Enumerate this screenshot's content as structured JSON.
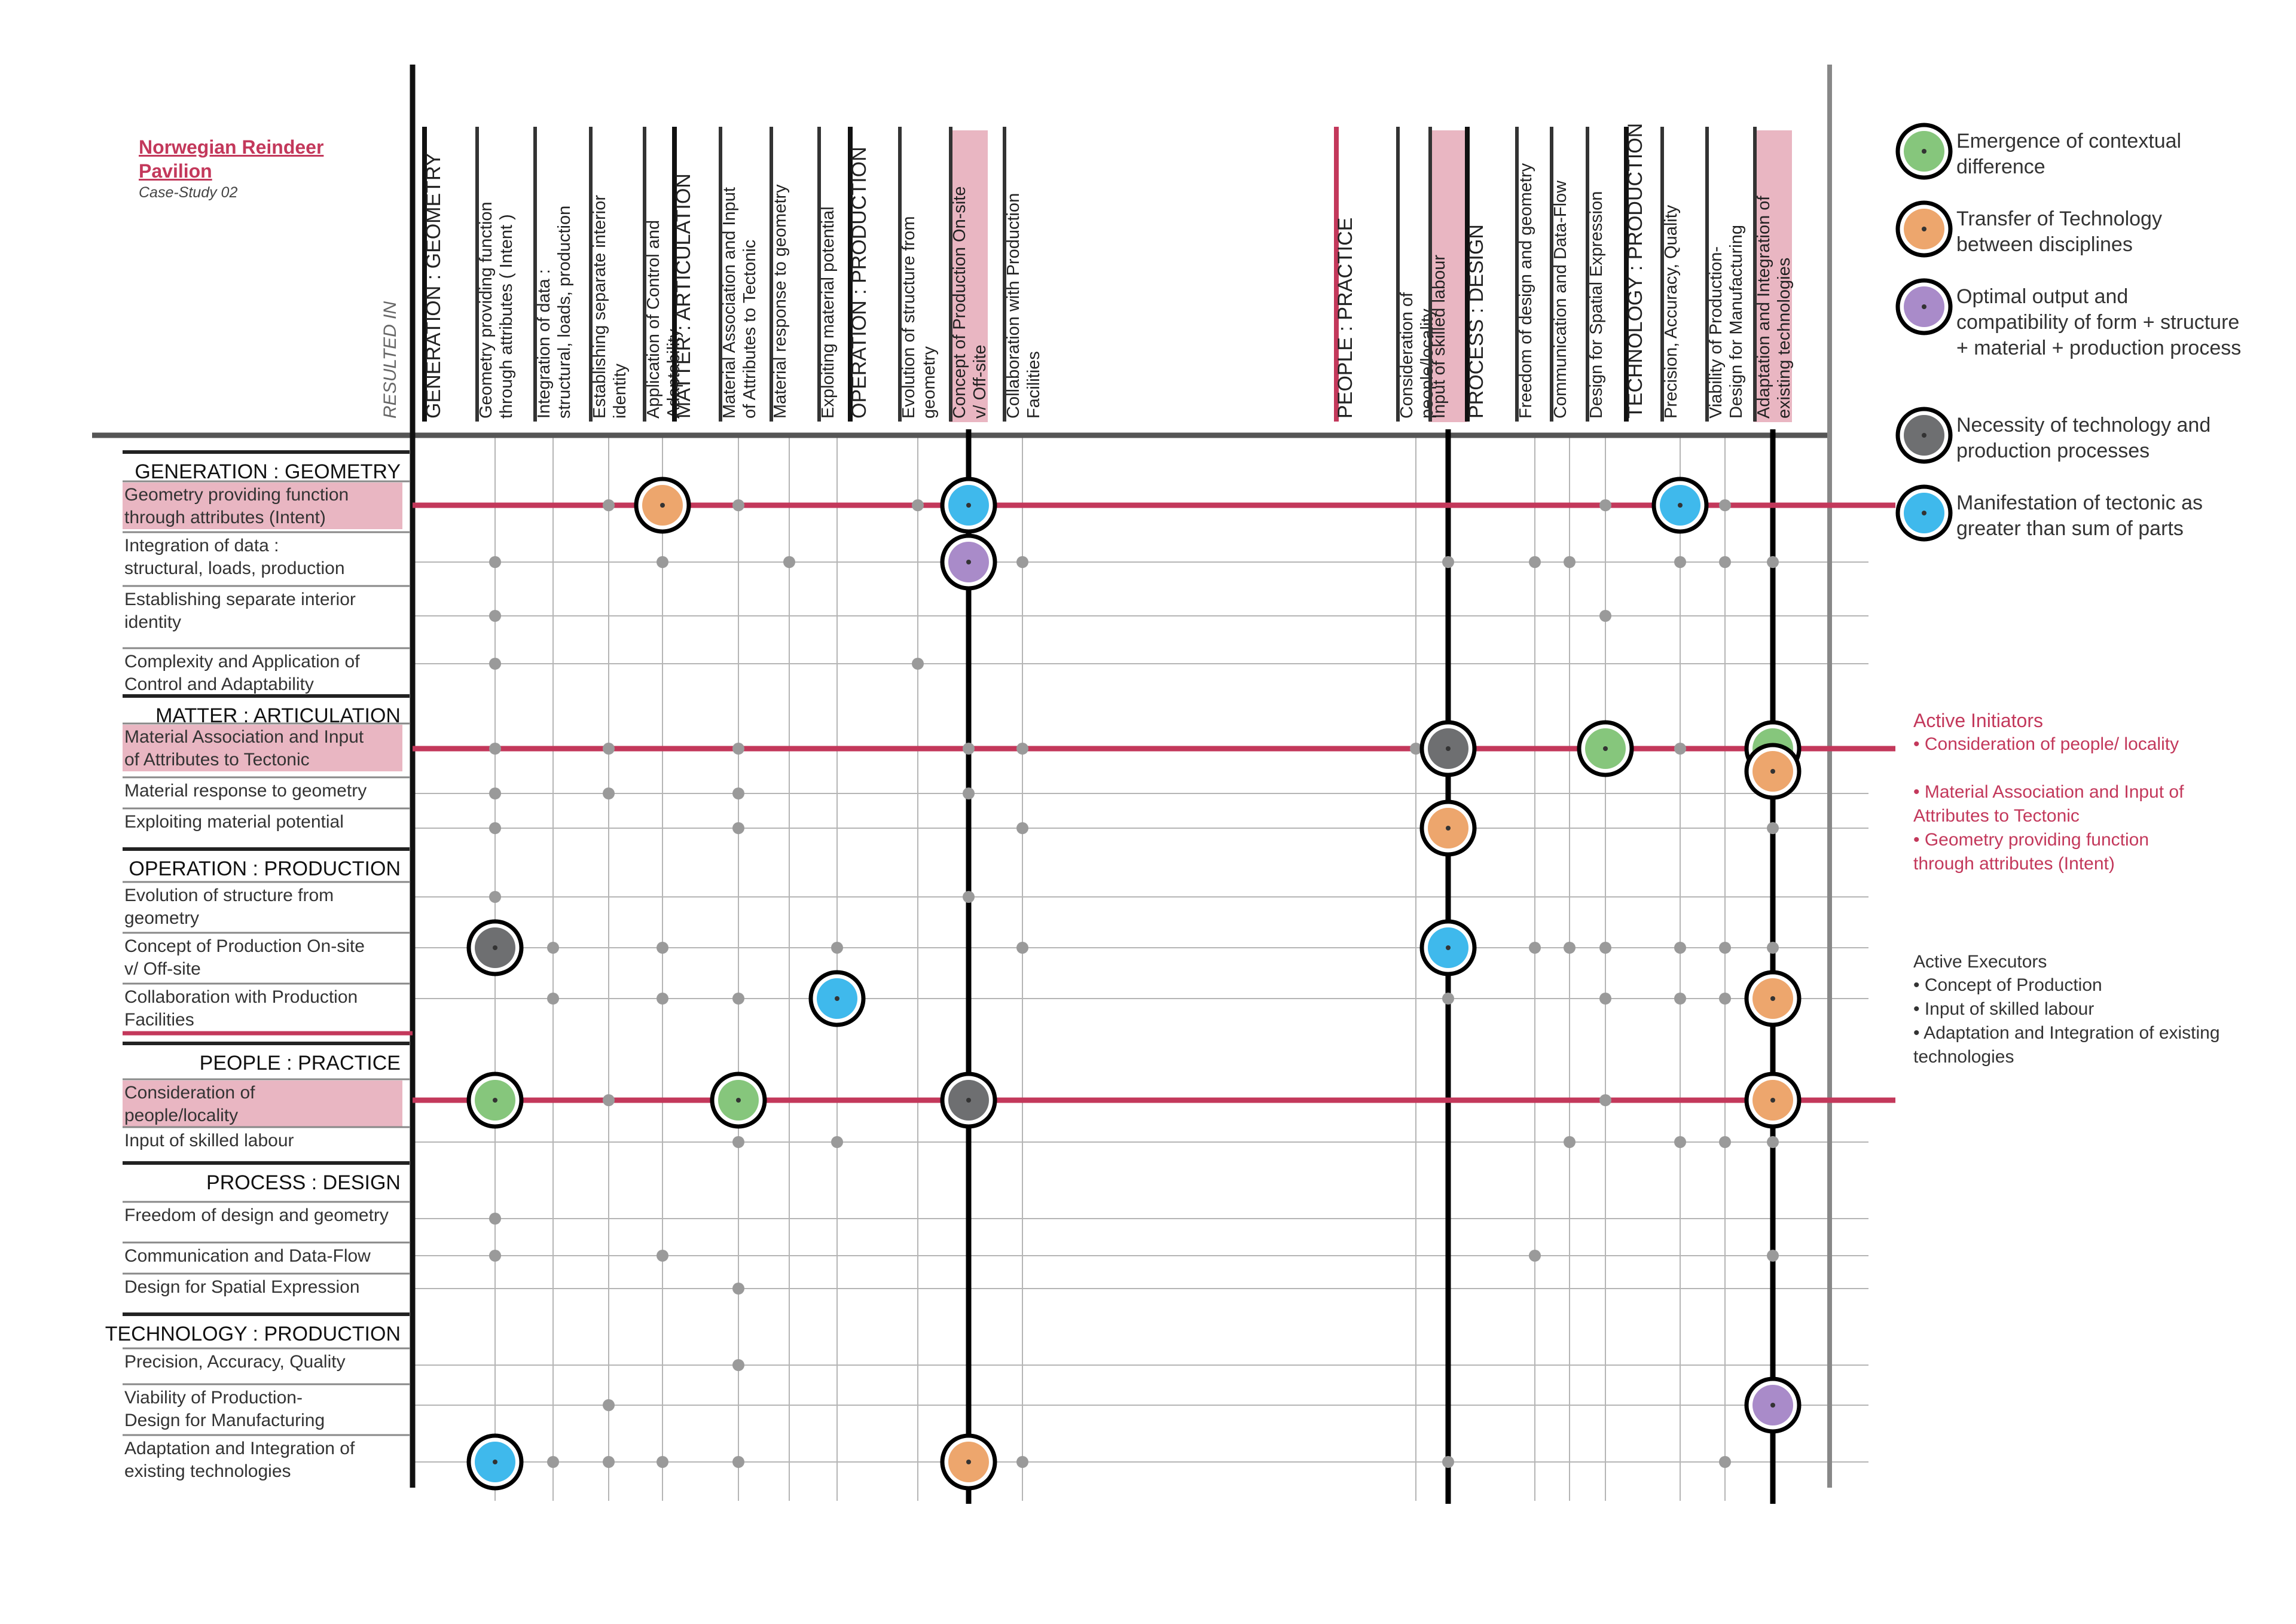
{
  "header": {
    "title": "Norwegian Reindeer Pavilion",
    "subtitle": "Case-Study 02",
    "resulted_in": "RESULTED IN"
  },
  "colors": {
    "accent": "#c3385b",
    "highlight": "#e9b6c2",
    "green": "#86c67c",
    "orange": "#eda66d",
    "purple": "#a98bc9",
    "grey": "#6e6f71",
    "blue": "#3fb9ec"
  },
  "columns": [
    {
      "label": "GENERATION : GEOMETRY",
      "header": true
    },
    {
      "label": "Geometry providing function through attributes ( Intent )"
    },
    {
      "label": "Integration of data : structural, loads, production"
    },
    {
      "label": "Establishing separate interior identity"
    },
    {
      "label": "Application of Control and Adaptability"
    },
    {
      "label": "MATTER : ARTICULATION",
      "header": true
    },
    {
      "label": "Material Association and Input of Attributes to Tectonic"
    },
    {
      "label": "Material response to geometry"
    },
    {
      "label": "Exploiting material potential"
    },
    {
      "label": "OPERATION : PRODUCTION",
      "header": true
    },
    {
      "label": "Evolution of structure from geometry"
    },
    {
      "label": "Concept of Production On-site v/ Off-site",
      "highlight": true
    },
    {
      "label": "Collaboration with Production Facilities"
    },
    {
      "label": "PEOPLE : PRACTICE",
      "header": true
    },
    {
      "label": "Consideration of people/locality"
    },
    {
      "label": "Input of skilled labour",
      "highlight": true
    },
    {
      "label": "PROCESS : DESIGN",
      "header": true
    },
    {
      "label": "Freedom of design and geometry"
    },
    {
      "label": "Communication and Data-Flow"
    },
    {
      "label": "Design for Spatial Expression"
    },
    {
      "label": "TECHNOLOGY : PRODUCTION",
      "header": true
    },
    {
      "label": "Precision, Accuracy, Quality"
    },
    {
      "label": "Viability of Production- Design for Manufacturing"
    },
    {
      "label": "Adaptation and Integration of existing technologies",
      "highlight": true
    }
  ],
  "rows": [
    {
      "label": "GENERATION : GEOMETRY",
      "header": true
    },
    {
      "label": "Geometry providing function through attributes (Intent)",
      "highlight": true
    },
    {
      "label": "Integration of data : structural, loads, production"
    },
    {
      "label": "Establishing separate interior identity"
    },
    {
      "label": "Complexity and Application of Control and Adaptability"
    },
    {
      "label": "MATTER : ARTICULATION",
      "header": true
    },
    {
      "label": "Material Association and Input of Attributes to Tectonic",
      "highlight": true
    },
    {
      "label": "Material response to geometry"
    },
    {
      "label": "Exploiting material potential"
    },
    {
      "label": "OPERATION : PRODUCTION",
      "header": true
    },
    {
      "label": "Evolution of structure from geometry"
    },
    {
      "label": "Concept of Production On-site v/ Off-site"
    },
    {
      "label": "Collaboration with Production Facilities"
    },
    {
      "label": "PEOPLE : PRACTICE",
      "header": true
    },
    {
      "label": "Consideration of people/locality",
      "highlight": true
    },
    {
      "label": "Input of skilled labour"
    },
    {
      "label": "PROCESS : DESIGN",
      "header": true
    },
    {
      "label": "Freedom of design and geometry"
    },
    {
      "label": "Communication and Data-Flow"
    },
    {
      "label": "Design for Spatial Expression"
    },
    {
      "label": "TECHNOLOGY : PRODUCTION",
      "header": true
    },
    {
      "label": "Precision, Accuracy, Quality"
    },
    {
      "label": "Viability of Production- Design for Manufacturing"
    },
    {
      "label": "Adaptation and Integration of existing technologies"
    }
  ],
  "legend": [
    {
      "key": "green",
      "label": "Emergence of contextual difference"
    },
    {
      "key": "orange",
      "label": "Transfer of Technology between disciplines"
    },
    {
      "key": "purple",
      "label": "Optimal output and compatibility of form + structure + material + production process"
    },
    {
      "key": "grey",
      "label": "Necessity of technology and production processes"
    },
    {
      "key": "blue",
      "label": "Manifestation of tectonic as greater than sum of parts"
    }
  ],
  "active_initiators": {
    "title": "Active Initiators",
    "items": [
      "Consideration of people/ locality",
      "Material Association and Input of Attributes to Tectonic",
      "Geometry providing function through attributes (Intent)"
    ]
  },
  "active_executors": {
    "title": "Active Executors",
    "items": [
      "Concept of Production",
      "Input of skilled labour",
      "Adaptation and Integration of existing technologies"
    ]
  },
  "circles": [
    {
      "row": 1,
      "col": 4,
      "type": "orange"
    },
    {
      "row": 1,
      "col": 11,
      "type": "blue"
    },
    {
      "row": 1,
      "col": 21,
      "type": "blue"
    },
    {
      "row": 2,
      "col": 11,
      "type": "purple"
    },
    {
      "row": 6,
      "col": 15,
      "type": "grey"
    },
    {
      "row": 6,
      "col": 19,
      "type": "green"
    },
    {
      "row": 6,
      "col": 23,
      "type": "green"
    },
    {
      "row": 6,
      "col": 23,
      "type": "orange",
      "offset": true
    },
    {
      "row": 8,
      "col": 15,
      "type": "orange"
    },
    {
      "row": 11,
      "col": 1,
      "type": "grey"
    },
    {
      "row": 11,
      "col": 15,
      "type": "blue"
    },
    {
      "row": 12,
      "col": 8,
      "type": "blue"
    },
    {
      "row": 12,
      "col": 23,
      "type": "orange"
    },
    {
      "row": 14,
      "col": 1,
      "type": "green"
    },
    {
      "row": 14,
      "col": 6,
      "type": "green"
    },
    {
      "row": 14,
      "col": 11,
      "type": "grey"
    },
    {
      "row": 14,
      "col": 23,
      "type": "orange"
    },
    {
      "row": 22,
      "col": 23,
      "type": "purple"
    },
    {
      "row": 23,
      "col": 1,
      "type": "blue"
    },
    {
      "row": 23,
      "col": 11,
      "type": "orange"
    }
  ],
  "dots": [
    [
      1,
      3
    ],
    [
      1,
      6
    ],
    [
      1,
      10
    ],
    [
      1,
      19
    ],
    [
      1,
      22
    ],
    [
      2,
      1
    ],
    [
      2,
      4
    ],
    [
      2,
      7
    ],
    [
      2,
      12
    ],
    [
      2,
      15
    ],
    [
      2,
      17
    ],
    [
      2,
      18
    ],
    [
      2,
      21
    ],
    [
      2,
      22
    ],
    [
      2,
      23
    ],
    [
      3,
      1
    ],
    [
      3,
      19
    ],
    [
      4,
      1
    ],
    [
      4,
      10
    ],
    [
      6,
      1
    ],
    [
      6,
      3
    ],
    [
      6,
      6
    ],
    [
      6,
      11
    ],
    [
      6,
      12
    ],
    [
      6,
      14
    ],
    [
      6,
      21
    ],
    [
      7,
      1
    ],
    [
      7,
      3
    ],
    [
      7,
      6
    ],
    [
      7,
      11
    ],
    [
      8,
      1
    ],
    [
      8,
      6
    ],
    [
      8,
      12
    ],
    [
      8,
      23
    ],
    [
      10,
      1
    ],
    [
      10,
      11
    ],
    [
      11,
      2
    ],
    [
      11,
      4
    ],
    [
      11,
      8
    ],
    [
      11,
      12
    ],
    [
      11,
      17
    ],
    [
      11,
      18
    ],
    [
      11,
      19
    ],
    [
      11,
      21
    ],
    [
      11,
      22
    ],
    [
      11,
      23
    ],
    [
      12,
      2
    ],
    [
      12,
      4
    ],
    [
      12,
      6
    ],
    [
      12,
      15
    ],
    [
      12,
      19
    ],
    [
      12,
      21
    ],
    [
      12,
      22
    ],
    [
      14,
      3
    ],
    [
      14,
      19
    ],
    [
      15,
      6
    ],
    [
      15,
      8
    ],
    [
      15,
      18
    ],
    [
      15,
      21
    ],
    [
      15,
      22
    ],
    [
      15,
      23
    ],
    [
      17,
      1
    ],
    [
      18,
      1
    ],
    [
      18,
      4
    ],
    [
      18,
      17
    ],
    [
      18,
      23
    ],
    [
      19,
      6
    ],
    [
      21,
      6
    ],
    [
      22,
      3
    ],
    [
      23,
      2
    ],
    [
      23,
      3
    ],
    [
      23,
      4
    ],
    [
      23,
      6
    ],
    [
      23,
      12
    ],
    [
      23,
      15
    ],
    [
      23,
      22
    ]
  ]
}
